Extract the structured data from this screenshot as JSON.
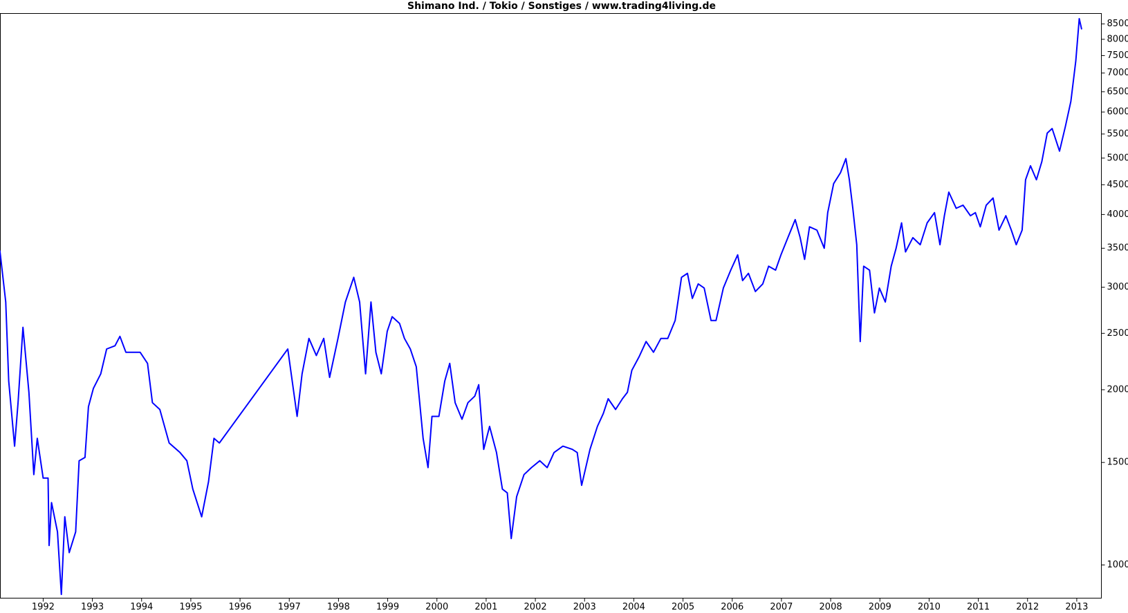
{
  "chart_data": {
    "type": "line",
    "title": "Shimano Ind. / Tokio / Sonstiges / www.trading4living.de",
    "color": "#0000ff",
    "log_scale": true,
    "grid": false,
    "xlim": [
      1991.13,
      2013.5
    ],
    "xticks": [
      1992,
      1993,
      1994,
      1995,
      1996,
      1997,
      1998,
      1999,
      2000,
      2001,
      2002,
      2003,
      2004,
      2005,
      2006,
      2007,
      2008,
      2009,
      2010,
      2011,
      2012,
      2013
    ],
    "ylim": [
      877,
      8860
    ],
    "yticks": [
      1000,
      1500,
      2000,
      2500,
      3000,
      3500,
      4000,
      4500,
      5000,
      5500,
      6000,
      6500,
      7000,
      7500,
      8000,
      8500
    ],
    "x": [
      1991.12,
      1991.24,
      1991.3,
      1991.42,
      1991.49,
      1991.59,
      1991.71,
      1991.81,
      1991.88,
      1992.0,
      1992.1,
      1992.12,
      1992.17,
      1992.29,
      1992.37,
      1992.44,
      1992.53,
      1992.66,
      1992.73,
      1992.85,
      1992.92,
      1993.02,
      1993.17,
      1993.29,
      1993.46,
      1993.56,
      1993.68,
      1993.83,
      1993.97,
      1994.12,
      1994.22,
      1994.37,
      1994.56,
      1994.78,
      1994.92,
      1995.04,
      1995.22,
      1995.36,
      1995.47,
      1995.58,
      1996.97,
      1997.16,
      1997.26,
      1997.4,
      1997.55,
      1997.7,
      1997.82,
      1997.99,
      1998.14,
      1998.31,
      1998.43,
      1998.55,
      1998.66,
      1998.76,
      1998.87,
      1998.99,
      1999.09,
      1999.24,
      1999.34,
      1999.46,
      1999.58,
      1999.72,
      1999.82,
      1999.9,
      2000.04,
      2000.16,
      2000.26,
      2000.37,
      2000.51,
      2000.63,
      2000.77,
      2000.85,
      2000.95,
      2001.07,
      2001.21,
      2001.33,
      2001.43,
      2001.51,
      2001.62,
      2001.77,
      2001.92,
      2002.09,
      2002.24,
      2002.38,
      2002.56,
      2002.75,
      2002.85,
      2002.94,
      2003.11,
      2003.26,
      2003.38,
      2003.48,
      2003.63,
      2003.77,
      2003.87,
      2003.96,
      2004.11,
      2004.25,
      2004.4,
      2004.55,
      2004.69,
      2004.84,
      2004.97,
      2005.09,
      2005.19,
      2005.31,
      2005.43,
      2005.57,
      2005.67,
      2005.82,
      2005.97,
      2006.11,
      2006.21,
      2006.33,
      2006.47,
      2006.62,
      2006.74,
      2006.88,
      2006.99,
      2007.13,
      2007.28,
      2007.38,
      2007.47,
      2007.57,
      2007.72,
      2007.87,
      2007.94,
      2008.06,
      2008.2,
      2008.31,
      2008.38,
      2008.45,
      2008.53,
      2008.6,
      2008.67,
      2008.79,
      2008.89,
      2008.99,
      2009.11,
      2009.23,
      2009.33,
      2009.44,
      2009.52,
      2009.67,
      2009.82,
      2009.96,
      2010.11,
      2010.22,
      2010.31,
      2010.4,
      2010.55,
      2010.69,
      2010.84,
      2010.94,
      2011.04,
      2011.16,
      2011.3,
      2011.42,
      2011.56,
      2011.67,
      2011.77,
      2011.89,
      2011.96,
      2012.06,
      2012.18,
      2012.29,
      2012.4,
      2012.5,
      2012.65,
      2012.77,
      2012.88,
      2012.98,
      2013.05,
      2013.1
    ],
    "values": [
      3470,
      2830,
      2070,
      1600,
      1900,
      2560,
      1980,
      1430,
      1650,
      1410,
      1410,
      1080,
      1280,
      1140,
      890,
      1210,
      1050,
      1140,
      1510,
      1530,
      1870,
      2010,
      2130,
      2350,
      2380,
      2470,
      2320,
      2320,
      2320,
      2220,
      1900,
      1850,
      1620,
      1560,
      1510,
      1350,
      1210,
      1390,
      1650,
      1620,
      2350,
      1800,
      2130,
      2450,
      2290,
      2450,
      2100,
      2450,
      2830,
      3120,
      2830,
      2130,
      2830,
      2320,
      2130,
      2520,
      2670,
      2600,
      2450,
      2350,
      2190,
      1650,
      1470,
      1800,
      1800,
      2070,
      2220,
      1900,
      1780,
      1900,
      1950,
      2040,
      1580,
      1730,
      1560,
      1350,
      1330,
      1110,
      1310,
      1430,
      1470,
      1510,
      1470,
      1560,
      1600,
      1580,
      1560,
      1370,
      1580,
      1730,
      1820,
      1930,
      1850,
      1930,
      1980,
      2160,
      2280,
      2420,
      2320,
      2450,
      2450,
      2630,
      3120,
      3170,
      2870,
      3040,
      2990,
      2630,
      2630,
      2990,
      3210,
      3410,
      3080,
      3170,
      2950,
      3040,
      3260,
      3210,
      3410,
      3650,
      3920,
      3650,
      3350,
      3810,
      3760,
      3500,
      4030,
      4520,
      4720,
      4990,
      4590,
      4100,
      3550,
      2420,
      3260,
      3210,
      2710,
      2990,
      2830,
      3260,
      3500,
      3870,
      3450,
      3650,
      3550,
      3870,
      4030,
      3550,
      3980,
      4370,
      4100,
      4150,
      3980,
      4030,
      3810,
      4150,
      4270,
      3760,
      3980,
      3760,
      3550,
      3760,
      4590,
      4850,
      4590,
      4930,
      5520,
      5620,
      5140,
      5670,
      6260,
      7340,
      8680,
      8320
    ]
  }
}
